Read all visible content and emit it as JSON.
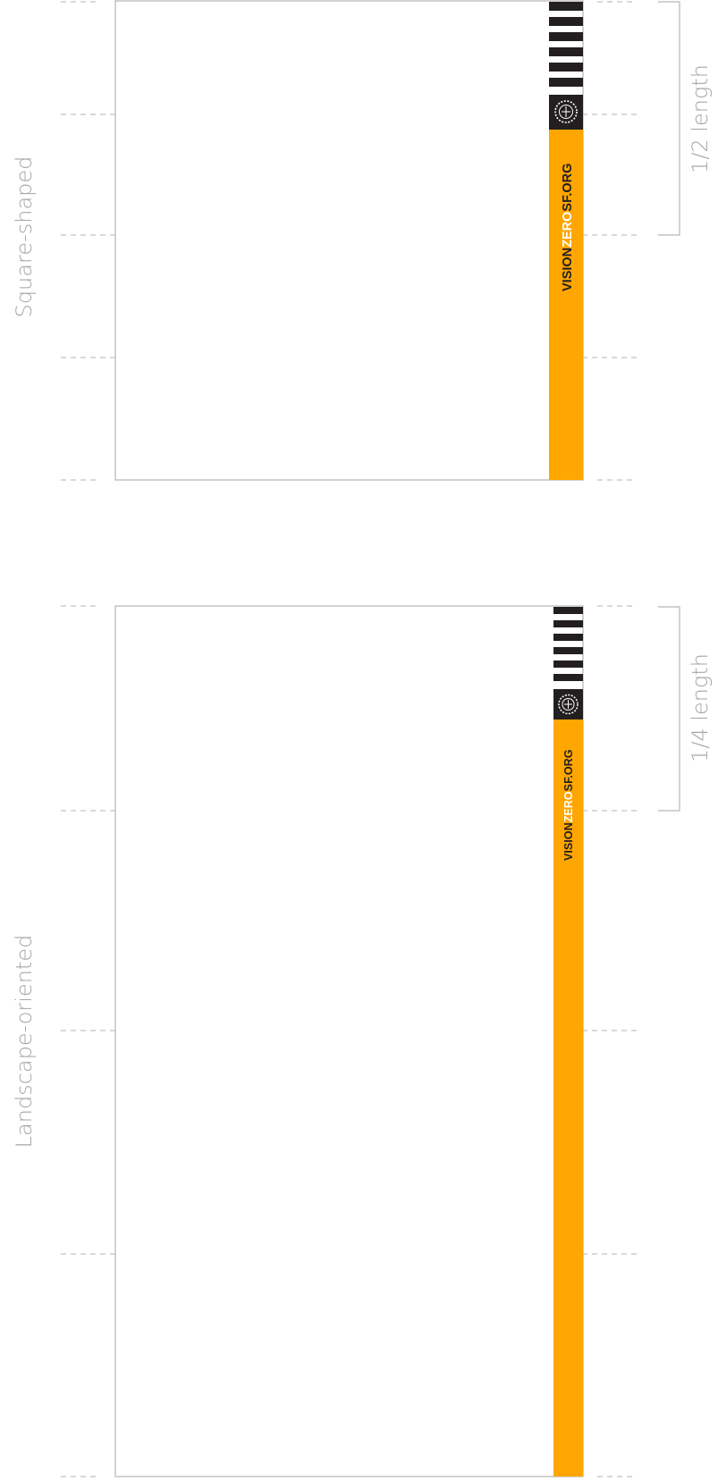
{
  "panels": [
    {
      "label": "Square-shaped",
      "length_label": "1/2 length",
      "brand": {
        "part1": "VISION",
        "part2": "ZERO",
        "part3": "SF.ORG"
      }
    },
    {
      "label": "Landscape-oriented",
      "length_label": "1/4 length",
      "brand": {
        "part1": "VISION",
        "part2": "ZERO",
        "part3": "SF.ORG"
      }
    }
  ],
  "colors": {
    "brand_orange": "#FFA600",
    "brand_dark": "#231F20",
    "brand_white": "#FFFFFF",
    "guide_gray": "#B3B3B3",
    "label_gray": "#A6A6A6"
  },
  "icons": {
    "emblem": "sun-emblem-icon"
  }
}
